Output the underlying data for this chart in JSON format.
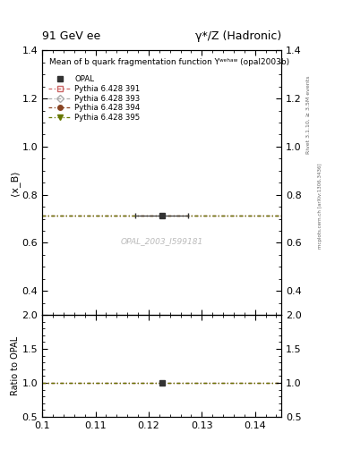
{
  "title_left": "91 GeV ee",
  "title_right": "γ*/Z (Hadronic)",
  "plot_title": "Mean of b quark fragmentation function Υʷᵉʰᵃʷ (opal2003b)",
  "ylabel_main": "⟨x_B⟩",
  "ylabel_ratio": "Ratio to OPAL",
  "right_label_top": "Rivet 3.1.10, ≥ 3.5M events",
  "right_label_bottom": "mcplots.cern.ch [arXiv:1306.3436]",
  "watermark": "OPAL_2003_I599181",
  "xlim": [
    0.1,
    0.145
  ],
  "ylim_main": [
    0.3,
    1.4
  ],
  "ylim_ratio": [
    0.5,
    2.0
  ],
  "data_x": [
    0.1225
  ],
  "data_y": [
    0.712
  ],
  "data_xerr": [
    0.005
  ],
  "line_y": 0.712,
  "ratio_data_x": [
    0.1225
  ],
  "ratio_data_y": [
    1.0
  ],
  "ratio_line_y": 1.0,
  "data_color": "#333333",
  "line_colors": [
    "#cc6666",
    "#aaaaaa",
    "#884422",
    "#667700"
  ],
  "legend_labels": [
    "OPAL",
    "Pythia 6.428 391",
    "Pythia 6.428 393",
    "Pythia 6.428 394",
    "Pythia 6.428 395"
  ],
  "xticks": [
    0.1,
    0.11,
    0.12,
    0.13,
    0.14
  ],
  "xtick_labels": [
    "0.1",
    "0.11",
    "0.12",
    "0.13",
    "0.14"
  ],
  "yticks_main": [
    0.4,
    0.6,
    0.8,
    1.0,
    1.2,
    1.4
  ],
  "yticks_ratio": [
    0.5,
    1.0,
    1.5,
    2.0
  ]
}
